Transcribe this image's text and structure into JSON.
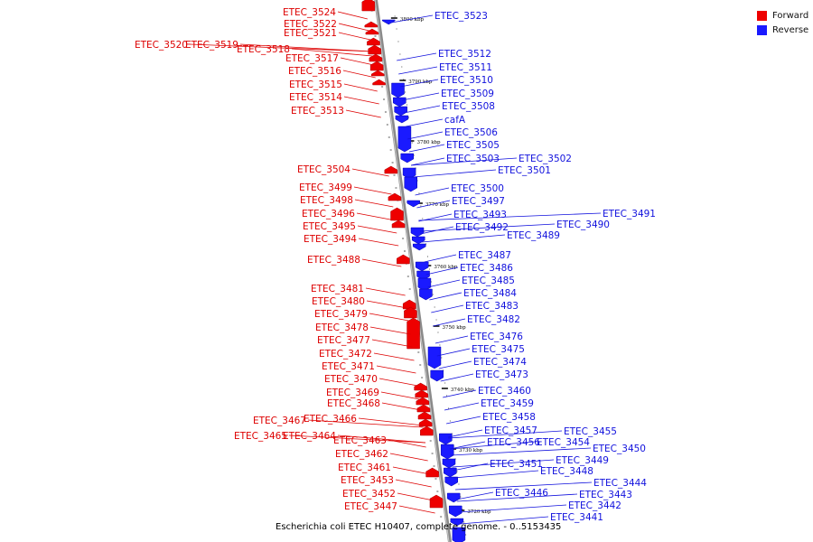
{
  "legend": {
    "forward": {
      "label": "Forward",
      "color": "#ee0000"
    },
    "reverse": {
      "label": "Reverse",
      "color": "#1a1aff"
    }
  },
  "caption": "Escherichia coli ETEC H10407, complete genome. - 0..5153435",
  "scale_labels": [
    "3800 kbp",
    "3790 kbp",
    "3780 kbp",
    "3770 kbp",
    "3760 kbp",
    "3750 kbp",
    "3740 kbp",
    "3730 kbp",
    "3720 kbp"
  ],
  "forward_genes": [
    "ETEC_3524",
    "ETEC_3522",
    "ETEC_3521",
    "ETEC_3520",
    "ETEC_3519",
    "ETEC_3518",
    "ETEC_3517",
    "ETEC_3516",
    "ETEC_3515",
    "ETEC_3514",
    "ETEC_3513",
    "ETEC_3504",
    "ETEC_3499",
    "ETEC_3498",
    "ETEC_3496",
    "ETEC_3495",
    "ETEC_3494",
    "ETEC_3488",
    "ETEC_3481",
    "ETEC_3480",
    "ETEC_3479",
    "ETEC_3478",
    "ETEC_3477",
    "ETEC_3472",
    "ETEC_3471",
    "ETEC_3470",
    "ETEC_3469",
    "ETEC_3468",
    "ETEC_3467",
    "ETEC_3466",
    "ETEC_3465",
    "ETEC_3464",
    "ETEC_3463",
    "ETEC_3462",
    "ETEC_3461",
    "ETEC_3453",
    "ETEC_3452",
    "ETEC_3447"
  ],
  "reverse_genes": [
    "ETEC_3523",
    "ETEC_3512",
    "ETEC_3511",
    "ETEC_3510",
    "ETEC_3509",
    "ETEC_3508",
    "cafA",
    "ETEC_3506",
    "ETEC_3505",
    "ETEC_3503",
    "ETEC_3502",
    "ETEC_3501",
    "ETEC_3500",
    "ETEC_3497",
    "ETEC_3493",
    "ETEC_3491",
    "ETEC_3492",
    "ETEC_3490",
    "ETEC_3489",
    "ETEC_3487",
    "ETEC_3486",
    "ETEC_3485",
    "ETEC_3484",
    "ETEC_3483",
    "ETEC_3482",
    "ETEC_3476",
    "ETEC_3475",
    "ETEC_3474",
    "ETEC_3473",
    "ETEC_3460",
    "ETEC_3459",
    "ETEC_3458",
    "ETEC_3457",
    "ETEC_3455",
    "ETEC_3456",
    "ETEC_3454",
    "ETEC_3450",
    "ETEC_3449",
    "ETEC_3451",
    "ETEC_3448",
    "ETEC_3444",
    "ETEC_3446",
    "ETEC_3443",
    "ETEC_3442",
    "ETEC_3441"
  ]
}
